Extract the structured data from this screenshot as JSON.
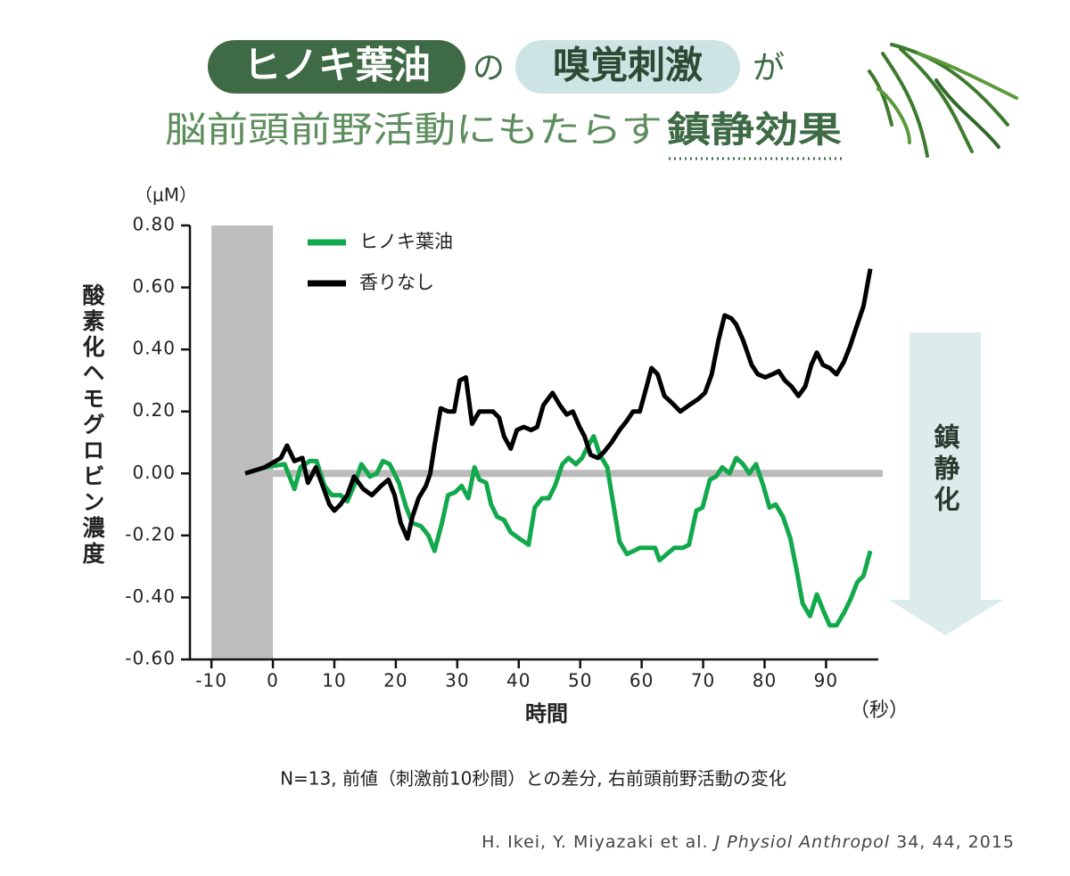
{
  "header": {
    "line1": [
      "ヒノキ葉油",
      "の",
      "嗅覚刺激",
      "が"
    ],
    "line2": [
      "脳前頭前野活動にもたらす",
      "鎮静効果"
    ]
  },
  "chart_data": {
    "type": "line",
    "y_unit": "（μM）",
    "ylabel": "酸素化ヘモグロビン濃度",
    "xlabel": "時間",
    "x_unit": "（秒）",
    "annotation": "鎮静化",
    "note": "N=13, 前値（刺激前10秒間）との差分, 右前頭前野活動の変化",
    "citation": [
      "H. Ikei, Y. Miyazaki et al. ",
      "J Physiol Anthropol",
      " 34, 44, 2015"
    ],
    "xlim": [
      -13.5,
      98.5
    ],
    "xticks": [
      -10,
      0,
      10,
      20,
      30,
      40,
      50,
      60,
      70,
      80,
      90
    ],
    "ylim": [
      -0.6,
      0.8
    ],
    "yticks": [
      {
        "value": 0.8,
        "label": "0.80"
      },
      {
        "value": 0.6,
        "label": "0.60"
      },
      {
        "value": 0.4,
        "label": "0.40"
      },
      {
        "value": 0.2,
        "label": "0.20"
      },
      {
        "value": 0,
        "label": "0.00"
      },
      {
        "value": -0.2,
        "label": "-0.20"
      },
      {
        "value": -0.4,
        "label": "-0.40"
      },
      {
        "value": -0.6,
        "label": "-0.60"
      }
    ],
    "shaded_region": [
      -10,
      0
    ],
    "reference_line": 0,
    "legend": "top-left",
    "series": [
      {
        "name": "ヒノキ葉油",
        "color": "#12a84c",
        "x": [
          -4.5,
          -1.3,
          1.9,
          3.5,
          4.5,
          6.0,
          7.1,
          8.4,
          9.6,
          11.0,
          12.1,
          13.2,
          14.4,
          15.8,
          16.9,
          17.9,
          19.0,
          20.5,
          21.7,
          22.7,
          24.1,
          25.3,
          26.3,
          27.5,
          28.5,
          29.7,
          30.7,
          31.8,
          32.8,
          33.6,
          34.7,
          35.5,
          36.5,
          37.6,
          38.7,
          40.1,
          41.6,
          42.6,
          43.8,
          44.9,
          45.9,
          47.1,
          48.1,
          49.3,
          50.3,
          51.3,
          52.2,
          53.2,
          54.4,
          55.4,
          56.4,
          57.6,
          58.7,
          59.7,
          61.2,
          62.2,
          62.9,
          64.1,
          65.3,
          66.7,
          67.7,
          68.9,
          69.9,
          71.1,
          72.1,
          73.1,
          74.3,
          75.4,
          76.5,
          77.5,
          78.6,
          79.8,
          80.8,
          81.8,
          83.0,
          84.2,
          85.2,
          86.2,
          87.4,
          88.5,
          89.5,
          90.6,
          91.7,
          92.9,
          93.9,
          95.1,
          96.1,
          97.2
        ],
        "values": [
          0,
          0.02,
          0.03,
          -0.05,
          0.02,
          0.04,
          0.04,
          -0.04,
          -0.07,
          -0.07,
          -0.09,
          -0.04,
          0.03,
          -0.01,
          0,
          0.04,
          0.03,
          -0.03,
          -0.11,
          -0.16,
          -0.17,
          -0.2,
          -0.25,
          -0.16,
          -0.07,
          -0.06,
          -0.04,
          -0.08,
          0.02,
          -0.02,
          -0.03,
          -0.1,
          -0.14,
          -0.15,
          -0.19,
          -0.21,
          -0.23,
          -0.11,
          -0.08,
          -0.08,
          -0.04,
          0.03,
          0.05,
          0.03,
          0.05,
          0.09,
          0.12,
          0.06,
          0.02,
          -0.1,
          -0.22,
          -0.26,
          -0.25,
          -0.24,
          -0.24,
          -0.24,
          -0.28,
          -0.26,
          -0.24,
          -0.24,
          -0.23,
          -0.12,
          -0.11,
          -0.02,
          -0.01,
          0.02,
          0,
          0.05,
          0.03,
          0,
          0.03,
          -0.04,
          -0.11,
          -0.1,
          -0.14,
          -0.21,
          -0.31,
          -0.42,
          -0.46,
          -0.39,
          -0.44,
          -0.49,
          -0.49,
          -0.45,
          -0.41,
          -0.35,
          -0.33,
          -0.25
        ]
      },
      {
        "name": "香りなし",
        "color": "#000000",
        "x": [
          -4.5,
          -1.3,
          1.3,
          2.3,
          3.5,
          4.8,
          5.7,
          7.0,
          8.1,
          9.2,
          10.0,
          11.0,
          12.1,
          13.2,
          14.7,
          16.1,
          17.6,
          18.8,
          19.8,
          20.8,
          21.9,
          22.7,
          23.7,
          24.9,
          25.6,
          26.3,
          27.3,
          28.5,
          29.5,
          30.4,
          31.4,
          32.4,
          33.6,
          34.7,
          35.8,
          36.8,
          37.6,
          38.7,
          39.7,
          40.8,
          42.0,
          43.0,
          44.0,
          45.5,
          46.7,
          47.8,
          48.8,
          49.9,
          50.7,
          51.7,
          52.9,
          53.9,
          55.1,
          56.4,
          57.6,
          58.6,
          59.7,
          60.8,
          61.6,
          62.6,
          63.7,
          64.8,
          66.3,
          67.7,
          69.2,
          70.3,
          71.4,
          72.5,
          73.5,
          74.6,
          75.4,
          76.5,
          77.9,
          78.9,
          80.1,
          81.3,
          82.3,
          83.3,
          84.4,
          85.5,
          86.6,
          87.6,
          88.5,
          89.5,
          90.6,
          91.7,
          92.9,
          93.9,
          94.9,
          96.1,
          97.2
        ],
        "values": [
          0,
          0.02,
          0.05,
          0.09,
          0.04,
          0.05,
          -0.03,
          0.02,
          -0.04,
          -0.1,
          -0.12,
          -0.1,
          -0.07,
          -0.01,
          -0.05,
          -0.07,
          -0.04,
          -0.02,
          -0.07,
          -0.16,
          -0.21,
          -0.14,
          -0.08,
          -0.04,
          0,
          0.09,
          0.21,
          0.2,
          0.2,
          0.3,
          0.31,
          0.16,
          0.2,
          0.2,
          0.2,
          0.18,
          0.12,
          0.08,
          0.14,
          0.15,
          0.14,
          0.15,
          0.22,
          0.26,
          0.22,
          0.19,
          0.2,
          0.15,
          0.12,
          0.06,
          0.05,
          0.07,
          0.1,
          0.14,
          0.17,
          0.2,
          0.2,
          0.28,
          0.34,
          0.32,
          0.25,
          0.23,
          0.2,
          0.22,
          0.24,
          0.26,
          0.32,
          0.43,
          0.51,
          0.5,
          0.48,
          0.43,
          0.35,
          0.32,
          0.31,
          0.32,
          0.33,
          0.3,
          0.28,
          0.25,
          0.28,
          0.35,
          0.39,
          0.35,
          0.34,
          0.32,
          0.36,
          0.41,
          0.47,
          0.54,
          0.66
        ]
      }
    ]
  }
}
